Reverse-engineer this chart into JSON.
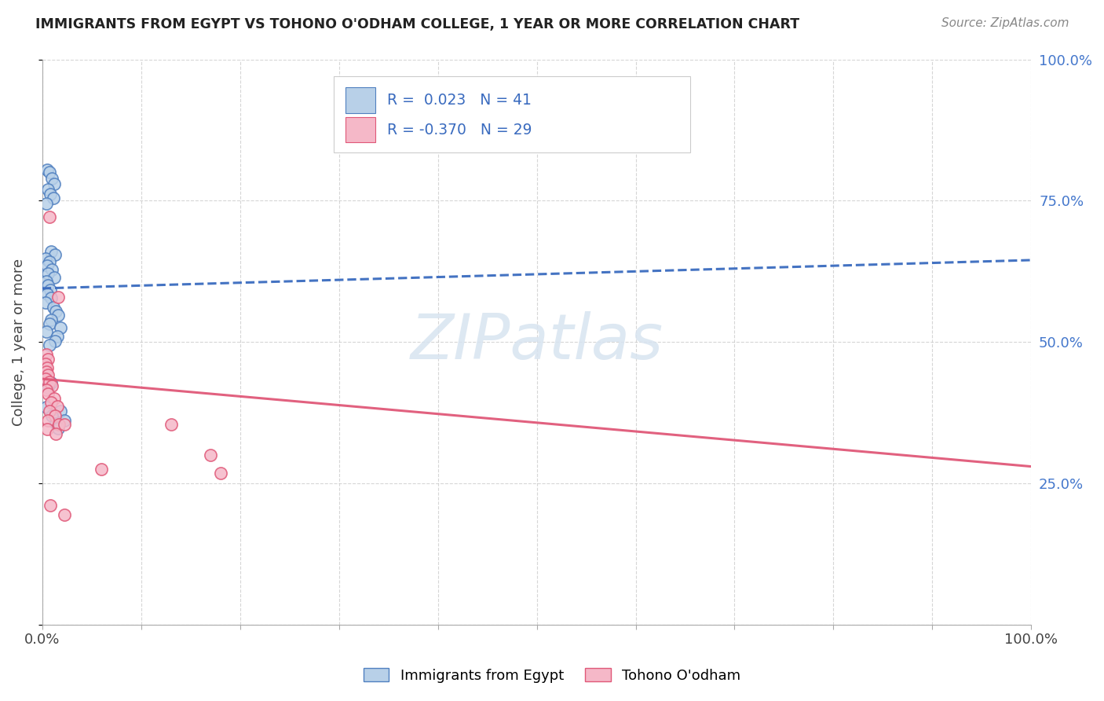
{
  "title": "IMMIGRANTS FROM EGYPT VS TOHONO O'ODHAM COLLEGE, 1 YEAR OR MORE CORRELATION CHART",
  "source": "Source: ZipAtlas.com",
  "ylabel": "College, 1 year or more",
  "legend_blue_r": "0.023",
  "legend_blue_n": "41",
  "legend_pink_r": "-0.370",
  "legend_pink_n": "29",
  "blue_fill": "#b8d0e8",
  "blue_edge": "#5080c0",
  "pink_fill": "#f5b8c8",
  "pink_edge": "#e05878",
  "blue_line": "#3a6bbf",
  "pink_line": "#e05878",
  "watermark_color": "#d8e4f0",
  "right_tick_color": "#4477cc",
  "title_color": "#222222",
  "source_color": "#888888",
  "grid_color": "#cccccc",
  "blue_scatter_x": [
    0.005,
    0.007,
    0.01,
    0.012,
    0.006,
    0.008,
    0.011,
    0.004,
    0.009,
    0.013,
    0.003,
    0.007,
    0.005,
    0.01,
    0.006,
    0.012,
    0.004,
    0.006,
    0.008,
    0.005,
    0.009,
    0.003,
    0.011,
    0.014,
    0.016,
    0.009,
    0.007,
    0.018,
    0.004,
    0.015,
    0.013,
    0.007,
    0.004,
    0.009,
    0.006,
    0.004,
    0.018,
    0.01,
    0.022,
    0.014,
    0.016
  ],
  "blue_scatter_y": [
    0.805,
    0.8,
    0.79,
    0.78,
    0.77,
    0.762,
    0.755,
    0.745,
    0.66,
    0.655,
    0.648,
    0.642,
    0.635,
    0.628,
    0.622,
    0.615,
    0.608,
    0.6,
    0.592,
    0.585,
    0.578,
    0.57,
    0.562,
    0.555,
    0.548,
    0.54,
    0.532,
    0.525,
    0.518,
    0.51,
    0.502,
    0.495,
    0.435,
    0.428,
    0.42,
    0.385,
    0.378,
    0.37,
    0.362,
    0.356,
    0.348
  ],
  "pink_scatter_x": [
    0.004,
    0.006,
    0.003,
    0.005,
    0.004,
    0.006,
    0.003,
    0.007,
    0.01,
    0.004,
    0.006,
    0.012,
    0.009,
    0.015,
    0.007,
    0.013,
    0.006,
    0.017,
    0.005,
    0.014,
    0.008,
    0.022,
    0.007,
    0.016,
    0.022,
    0.06,
    0.13,
    0.17,
    0.18
  ],
  "pink_scatter_y": [
    0.478,
    0.47,
    0.462,
    0.455,
    0.448,
    0.442,
    0.435,
    0.43,
    0.422,
    0.415,
    0.408,
    0.4,
    0.393,
    0.386,
    0.378,
    0.37,
    0.362,
    0.355,
    0.346,
    0.338,
    0.212,
    0.195,
    0.722,
    0.58,
    0.355,
    0.275,
    0.355,
    0.3,
    0.268
  ],
  "xlim": [
    0.0,
    1.0
  ],
  "ylim": [
    0.0,
    1.0
  ],
  "xticks": [
    0.0,
    0.1,
    0.2,
    0.3,
    0.4,
    0.5,
    0.6,
    0.7,
    0.8,
    0.9,
    1.0
  ],
  "yticks": [
    0.0,
    0.25,
    0.5,
    0.75,
    1.0
  ]
}
